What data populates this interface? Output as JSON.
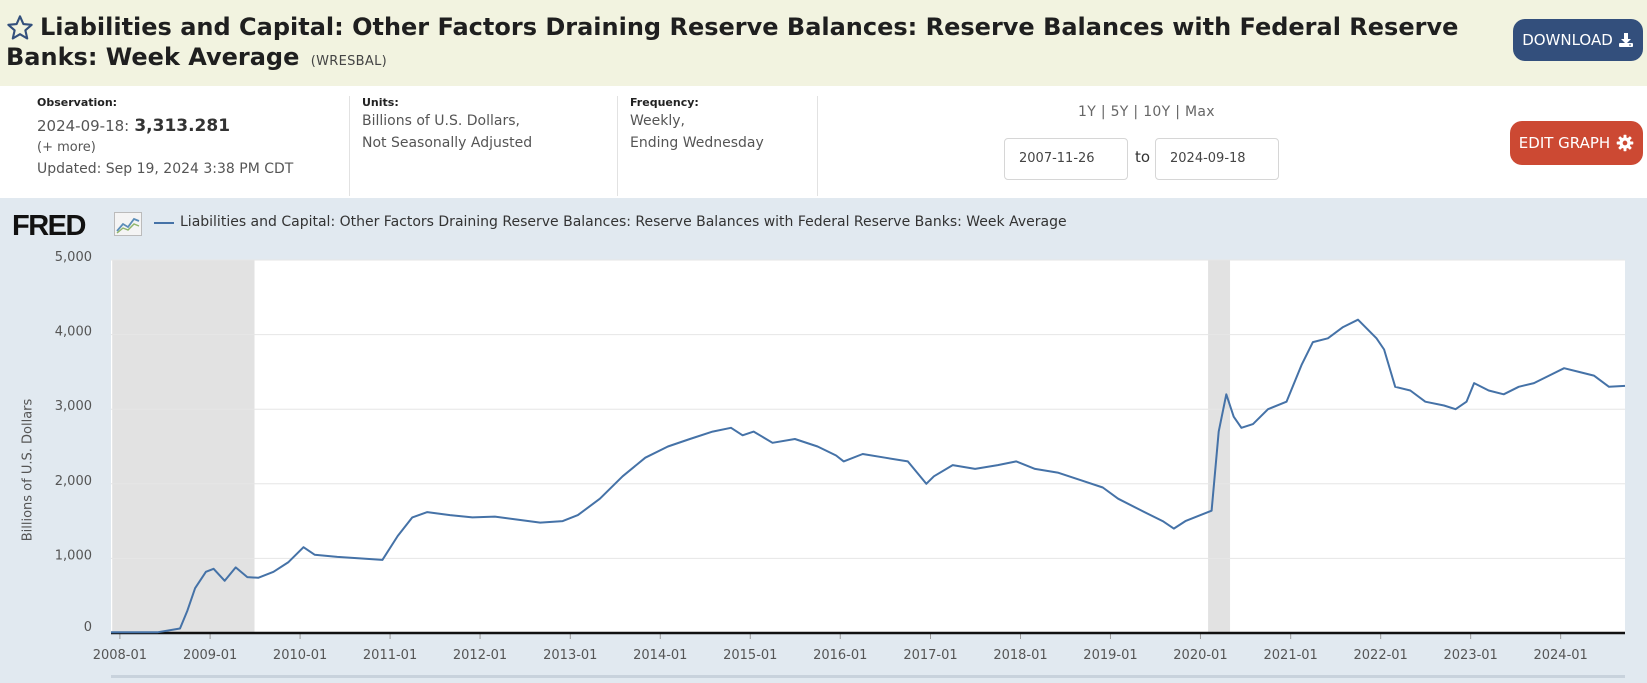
{
  "header": {
    "title": "Liabilities and Capital: Other Factors Draining Reserve Balances: Reserve Balances with Federal Reserve Banks: Week Average",
    "series_id": "(WRESBAL)",
    "download_label": "DOWNLOAD",
    "star_icon": "star-outline-icon",
    "download_icon": "download-icon"
  },
  "info": {
    "observation_label": "Observation:",
    "observation_date": "2024-09-18:",
    "observation_value": "3,313.281",
    "more_label": "(+ more)",
    "updated": "Updated: Sep 19, 2024 3:38 PM CDT",
    "units_label": "Units:",
    "units_line1": "Billions of U.S. Dollars,",
    "units_line2": "Not Seasonally Adjusted",
    "frequency_label": "Frequency:",
    "frequency_line1": "Weekly,",
    "frequency_line2": "Ending Wednesday",
    "ranges": [
      "1Y",
      "5Y",
      "10Y",
      "Max"
    ],
    "start_date": "2007-11-26",
    "to_label": "to",
    "end_date": "2024-09-18",
    "edit_label": "EDIT GRAPH",
    "edit_icon": "gear-icon"
  },
  "chart_data": {
    "type": "line",
    "logo": "FRED",
    "legend": "Liabilities and Capital: Other Factors Draining Reserve Balances: Reserve Balances with Federal Reserve Banks: Week Average",
    "ylabel": "Billions of U.S. Dollars",
    "ylim": [
      0,
      5000
    ],
    "yticks": [
      0,
      1000,
      2000,
      3000,
      4000,
      5000
    ],
    "ytick_labels": [
      "0",
      "1,000",
      "2,000",
      "3,000",
      "4,000",
      "5,000"
    ],
    "xlim": [
      "2007-11-26",
      "2024-09-18"
    ],
    "xtick_labels": [
      "2008-01",
      "2009-01",
      "2010-01",
      "2011-01",
      "2012-01",
      "2013-01",
      "2014-01",
      "2015-01",
      "2016-01",
      "2017-01",
      "2018-01",
      "2019-01",
      "2020-01",
      "2021-01",
      "2022-01",
      "2023-01",
      "2024-01"
    ],
    "recessions": [
      [
        "2007-12-01",
        "2009-06-30"
      ],
      [
        "2020-02-01",
        "2020-04-30"
      ]
    ],
    "grid": true,
    "colors": {
      "line": "#4572a7",
      "recession": "#e2e2e2",
      "grid": "#e6e6e6"
    },
    "series": [
      {
        "x": [
          "2007-11-26",
          "2008-06-01",
          "2008-09-01",
          "2008-10-01",
          "2008-11-01",
          "2008-12-15",
          "2009-01-15",
          "2009-03-01",
          "2009-04-15",
          "2009-06-01",
          "2009-07-15",
          "2009-09-15",
          "2009-11-15",
          "2010-01-15",
          "2010-03-01",
          "2010-06-01",
          "2010-09-01",
          "2010-12-01",
          "2011-02-01",
          "2011-04-01",
          "2011-06-01",
          "2011-09-01",
          "2011-12-01",
          "2012-03-01",
          "2012-06-01",
          "2012-09-01",
          "2012-12-01",
          "2013-02-01",
          "2013-05-01",
          "2013-08-01",
          "2013-11-01",
          "2014-02-01",
          "2014-05-01",
          "2014-08-01",
          "2014-10-15",
          "2014-12-01",
          "2015-01-15",
          "2015-04-01",
          "2015-07-01",
          "2015-10-01",
          "2015-12-15",
          "2016-01-15",
          "2016-04-01",
          "2016-07-01",
          "2016-10-01",
          "2016-12-15",
          "2017-01-15",
          "2017-04-01",
          "2017-07-01",
          "2017-10-01",
          "2017-12-15",
          "2018-03-01",
          "2018-06-01",
          "2018-09-01",
          "2018-12-01",
          "2019-02-01",
          "2019-05-01",
          "2019-08-01",
          "2019-09-15",
          "2019-11-01",
          "2020-01-01",
          "2020-02-15",
          "2020-03-15",
          "2020-04-15",
          "2020-05-15",
          "2020-06-15",
          "2020-08-01",
          "2020-10-01",
          "2020-12-15",
          "2021-02-15",
          "2021-04-01",
          "2021-06-01",
          "2021-08-01",
          "2021-10-01",
          "2021-12-15",
          "2022-01-15",
          "2022-03-01",
          "2022-05-01",
          "2022-07-01",
          "2022-09-15",
          "2022-11-01",
          "2022-12-15",
          "2023-01-15",
          "2023-03-15",
          "2023-05-15",
          "2023-07-15",
          "2023-09-15",
          "2023-11-15",
          "2024-01-15",
          "2024-03-15",
          "2024-05-15",
          "2024-07-15",
          "2024-09-18"
        ],
        "values": [
          10,
          10,
          60,
          300,
          600,
          820,
          860,
          700,
          880,
          750,
          740,
          820,
          950,
          1150,
          1050,
          1020,
          1000,
          980,
          1300,
          1550,
          1620,
          1580,
          1550,
          1560,
          1520,
          1480,
          1500,
          1580,
          1800,
          2100,
          2350,
          2500,
          2600,
          2700,
          2750,
          2650,
          2700,
          2550,
          2600,
          2500,
          2380,
          2300,
          2400,
          2350,
          2300,
          2000,
          2100,
          2250,
          2200,
          2250,
          2300,
          2200,
          2150,
          2050,
          1950,
          1800,
          1650,
          1500,
          1400,
          1500,
          1580,
          1640,
          2700,
          3200,
          2900,
          2750,
          2800,
          3000,
          3100,
          3600,
          3900,
          3950,
          4100,
          4200,
          3950,
          3800,
          3300,
          3250,
          3100,
          3050,
          3000,
          3100,
          3350,
          3250,
          3200,
          3300,
          3350,
          3450,
          3550,
          3500,
          3450,
          3300,
          3313
        ]
      }
    ]
  }
}
